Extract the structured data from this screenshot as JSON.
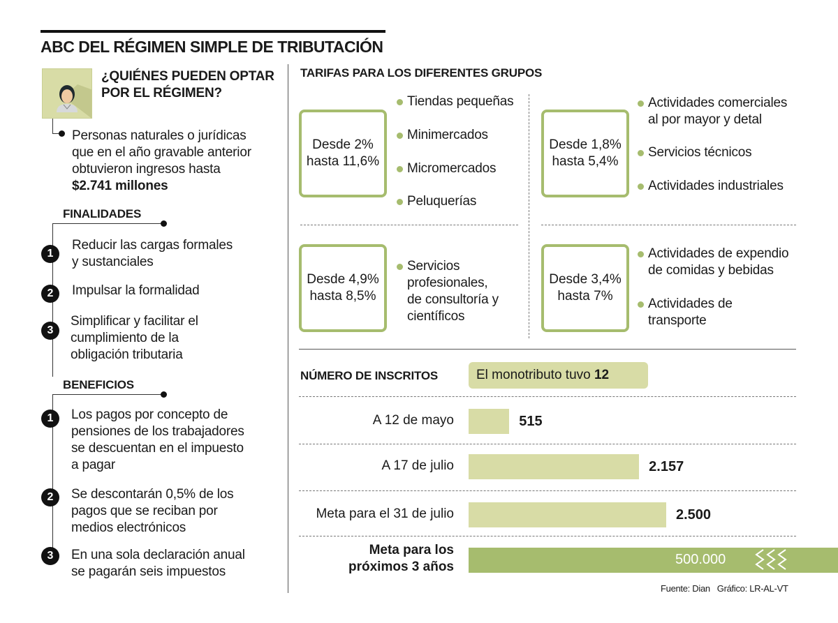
{
  "title": "ABC DEL RÉGIMEN SIMPLE DE TRIBUTACIÓN",
  "who": {
    "heading": [
      "¿QUIÉNES PUEDEN OPTAR",
      "POR EL RÉGIMEN?"
    ],
    "text": [
      "Personas naturales o jurídicas",
      "que en el año gravable anterior",
      "obtuvieron ingresos hasta"
    ],
    "amount": "$2.741 millones"
  },
  "finalidades": {
    "heading": "FINALIDADES",
    "items": [
      {
        "n": "1",
        "lines": [
          "Reducir las cargas formales",
          "y sustanciales"
        ]
      },
      {
        "n": "2",
        "lines": [
          "Impulsar la formalidad"
        ]
      },
      {
        "n": "3",
        "lines": [
          "Simplificar y facilitar el",
          "cumplimiento de la",
          "obligación tributaria"
        ]
      }
    ]
  },
  "beneficios": {
    "heading": "BENEFICIOS",
    "items": [
      {
        "n": "1",
        "lines": [
          "Los pagos por concepto de",
          "pensiones de los trabajadores",
          "se descuentan en el impuesto",
          "a pagar"
        ]
      },
      {
        "n": "2",
        "lines": [
          "Se descontarán 0,5% de los",
          "pagos que se reciban por",
          "medios electrónicos"
        ]
      },
      {
        "n": "3",
        "lines": [
          "En una sola declaración anual",
          "se pagarán seis impuestos"
        ]
      }
    ]
  },
  "tarifas": {
    "heading": "TARIFAS PARA LOS DIFERENTES GRUPOS",
    "groups": [
      {
        "rate": [
          "Desde 2%",
          "hasta 11,6%"
        ],
        "items": [
          "Tiendas pequeñas",
          "Minimercados",
          "Micromercados",
          "Peluquerías"
        ]
      },
      {
        "rate": [
          "Desde 1,8%",
          "hasta 5,4%"
        ],
        "items": [
          "Actividades comerciales\nal por mayor y detal",
          "Servicios técnicos",
          "Actividades industriales"
        ]
      },
      {
        "rate": [
          "Desde 4,9%",
          "hasta 8,5%"
        ],
        "items": [
          "Servicios\nprofesionales,\nde consultoría y\ncientíficos"
        ]
      },
      {
        "rate": [
          "Desde 3,4%",
          "hasta 7%"
        ],
        "items": [
          "Actividades de expendio\nde comidas y bebidas",
          "Actividades de\ntransporte"
        ]
      }
    ]
  },
  "inscritos": {
    "heading": "NÚMERO DE INSCRITOS",
    "note_prefix": "El monotributo tuvo ",
    "note_value": "12"
  },
  "chart_data": {
    "type": "bar",
    "orientation": "horizontal",
    "title": "NÚMERO DE INSCRITOS",
    "categories": [
      "A 12 de mayo",
      "A 17 de julio",
      "Meta para el 31 de julio"
    ],
    "values": [
      515,
      2157,
      2500
    ],
    "value_labels": [
      "515",
      "2.157",
      "2.500"
    ],
    "goal": {
      "label": [
        "Meta para los",
        "próximos 3 años"
      ],
      "value": 500000,
      "value_label": "500.000",
      "broken_axis": true
    }
  },
  "footer": {
    "source": "Fuente: Dian",
    "credit": "Gráfico: LR-AL-VT"
  },
  "colors": {
    "accent": "#a6bc6e",
    "light": "#d8dca6"
  }
}
